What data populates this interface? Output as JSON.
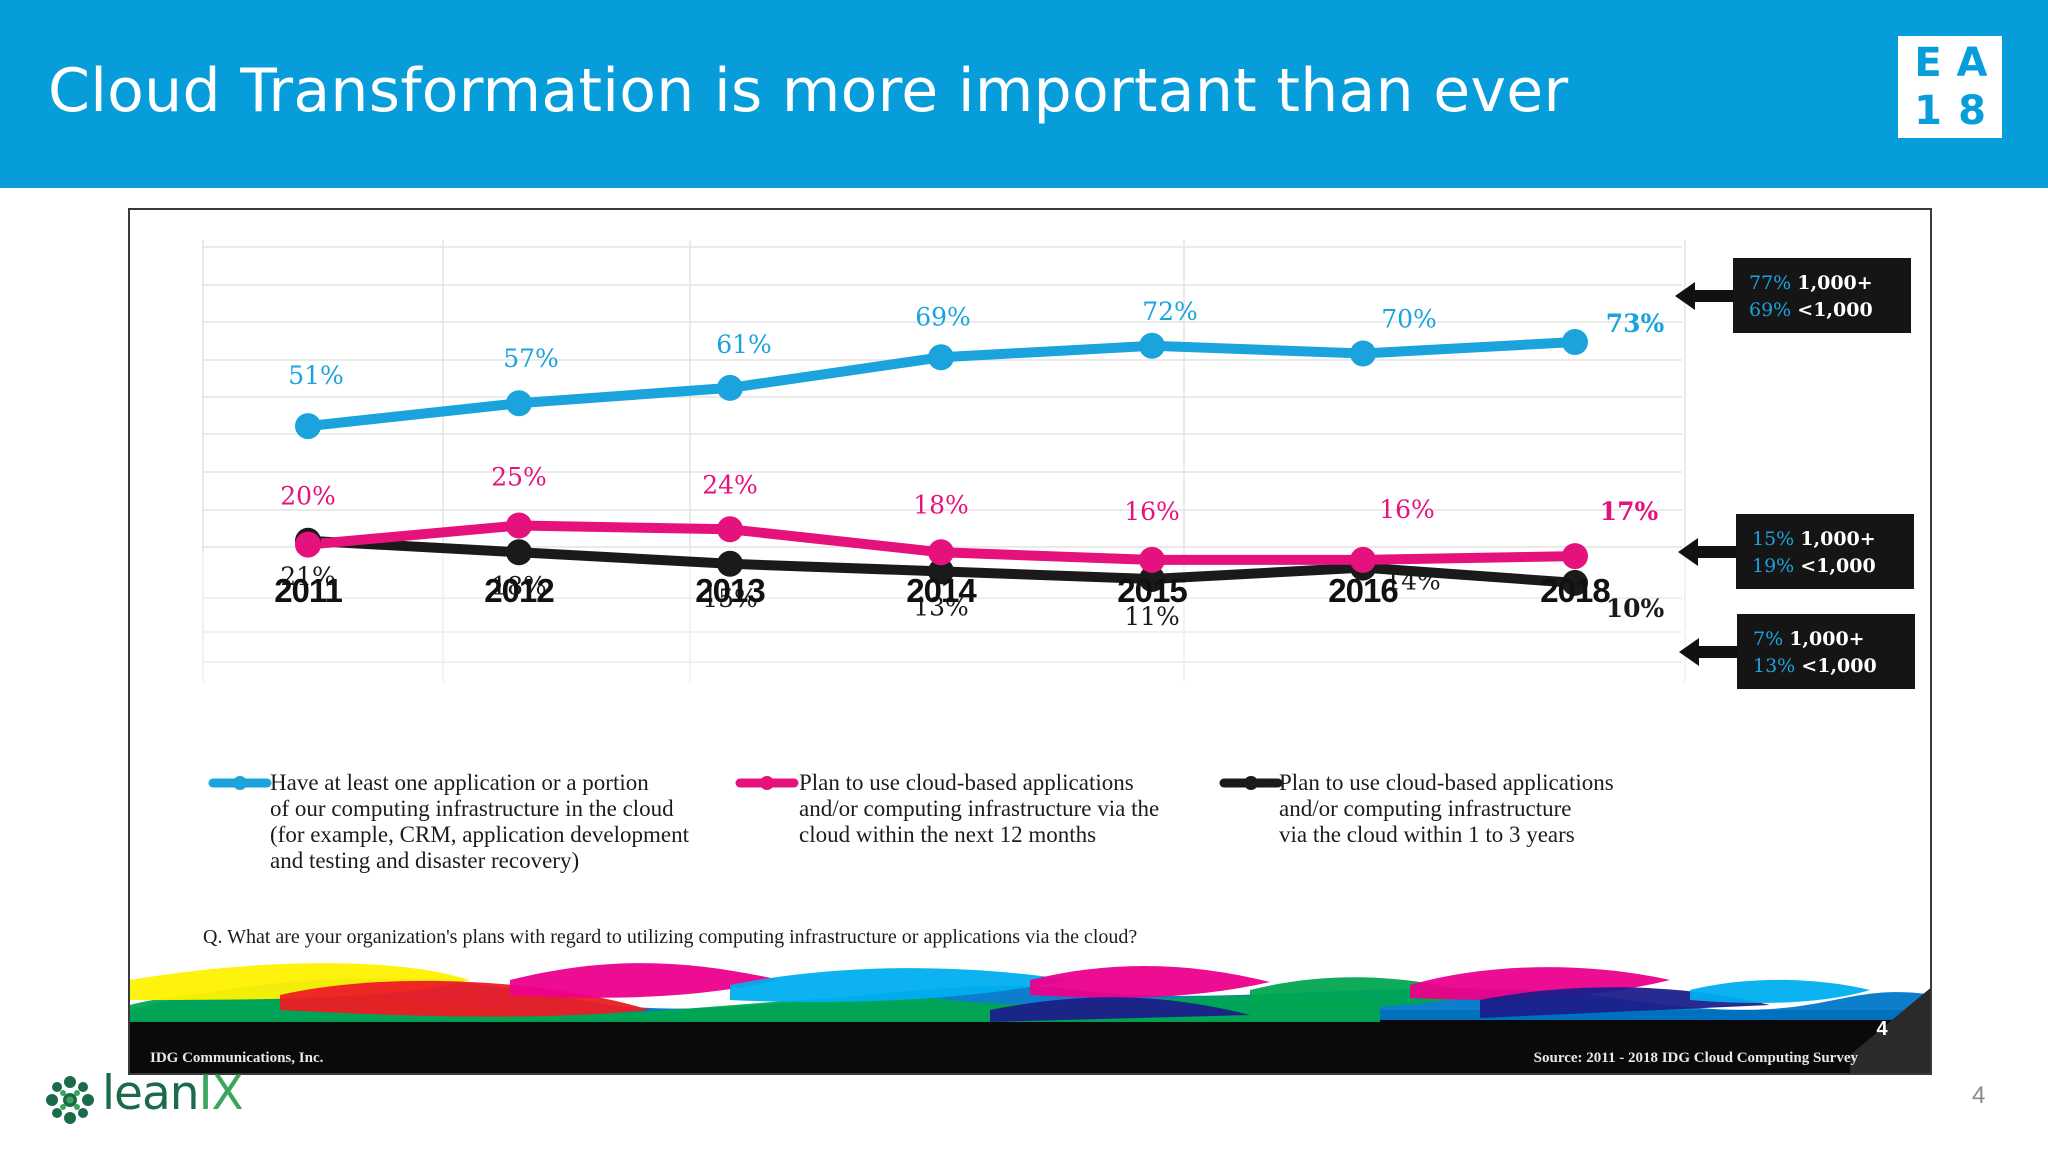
{
  "slide": {
    "title": "Cloud Transformation is more important than ever",
    "badge": [
      "E",
      "A",
      "1",
      "8"
    ],
    "logo_text": "lean",
    "logo_text_x": "IX",
    "page_number": "4"
  },
  "chart_data": {
    "type": "line",
    "x": [
      "2011",
      "2012",
      "2013",
      "2014",
      "2015",
      "2016",
      "2018"
    ],
    "series": [
      {
        "name": "Have at least one application or a portion of our computing infrastructure in the cloud (for example, CRM, application development and testing and disaster recovery)",
        "values": [
          51,
          57,
          61,
          69,
          72,
          70,
          73
        ],
        "labels": [
          "51%",
          "57%",
          "61%",
          "69%",
          "72%",
          "70%",
          "73%"
        ],
        "color": "#1aa3dd",
        "callout": [
          {
            "value": "77%",
            "text": "1,000+"
          },
          {
            "value": "69%",
            "text": "<1,000"
          }
        ]
      },
      {
        "name": "Plan to use cloud-based applications and/or computing infrastructure via the cloud within the next 12 months",
        "values": [
          20,
          25,
          24,
          18,
          16,
          16,
          17
        ],
        "labels": [
          "20%",
          "25%",
          "24%",
          "18%",
          "16%",
          "16%",
          "17%"
        ],
        "color": "#e5127d",
        "callout": [
          {
            "value": "15%",
            "text": "1,000+"
          },
          {
            "value": "19%",
            "text": "<1,000"
          }
        ]
      },
      {
        "name": "Plan to use cloud-based applications and/or computing infrastructure via the cloud within 1 to 3 years",
        "values": [
          21,
          18,
          15,
          13,
          11,
          14,
          10
        ],
        "labels": [
          "21%",
          "18%",
          "15%",
          "13%",
          "11%",
          "14%",
          "10%"
        ],
        "color": "#1a1a1a",
        "callout": [
          {
            "value": "7%",
            "text": "1,000+"
          },
          {
            "value": "13%",
            "text": "<1,000"
          }
        ]
      }
    ],
    "legend": [
      [
        "Have at least one application or a portion",
        "of our computing infrastructure in the cloud",
        "(for example, CRM, application development",
        "and testing and disaster recovery)"
      ],
      [
        "Plan to use cloud-based applications",
        "and/or computing infrastructure via the",
        "cloud within the next 12 months"
      ],
      [
        "Plan to use cloud-based applications",
        "and/or computing infrastructure",
        "via the cloud within 1 to 3 years"
      ]
    ],
    "question": "Q. What are your organization's plans with regard to utilizing computing infrastructure or applications via the cloud?",
    "footer_left": "IDG Communications, Inc.",
    "footer_right": "Source: 2011 - 2018 IDG Cloud Computing Survey",
    "footer_page": "4",
    "grid": true
  }
}
